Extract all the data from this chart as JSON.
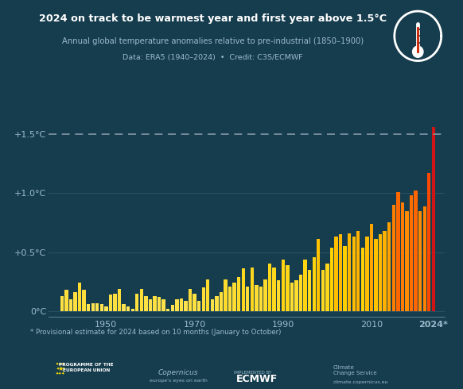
{
  "title": "2024 on track to be warmest year and first year above 1.5°C",
  "subtitle": "Annual global temperature anomalies relative to pre-industrial (1850–1900)",
  "credit": "Data: ERA5 (1940–2024)  •  Credit: C3S/ECMWF",
  "footnote": "* Provisional estimate for 2024 based on 10 months (January to October)",
  "background_color": "#163d4e",
  "dashed_line_y": 1.5,
  "dashed_line_color": "#8899aa",
  "years": [
    1940,
    1941,
    1942,
    1943,
    1944,
    1945,
    1946,
    1947,
    1948,
    1949,
    1950,
    1951,
    1952,
    1953,
    1954,
    1955,
    1956,
    1957,
    1958,
    1959,
    1960,
    1961,
    1962,
    1963,
    1964,
    1965,
    1966,
    1967,
    1968,
    1969,
    1970,
    1971,
    1972,
    1973,
    1974,
    1975,
    1976,
    1977,
    1978,
    1979,
    1980,
    1981,
    1982,
    1983,
    1984,
    1985,
    1986,
    1987,
    1988,
    1989,
    1990,
    1991,
    1992,
    1993,
    1994,
    1995,
    1996,
    1997,
    1998,
    1999,
    2000,
    2001,
    2002,
    2003,
    2004,
    2005,
    2006,
    2007,
    2008,
    2009,
    2010,
    2011,
    2012,
    2013,
    2014,
    2015,
    2016,
    2017,
    2018,
    2019,
    2020,
    2021,
    2022,
    2023,
    2024
  ],
  "values": [
    0.13,
    0.18,
    0.1,
    0.16,
    0.24,
    0.18,
    0.06,
    0.07,
    0.07,
    0.06,
    0.04,
    0.14,
    0.15,
    0.19,
    0.06,
    0.04,
    0.02,
    0.15,
    0.19,
    0.13,
    0.1,
    0.13,
    0.12,
    0.1,
    0.02,
    0.05,
    0.1,
    0.11,
    0.09,
    0.19,
    0.15,
    0.09,
    0.2,
    0.27,
    0.1,
    0.13,
    0.16,
    0.27,
    0.21,
    0.24,
    0.29,
    0.36,
    0.21,
    0.37,
    0.22,
    0.21,
    0.27,
    0.4,
    0.37,
    0.26,
    0.44,
    0.39,
    0.24,
    0.26,
    0.31,
    0.44,
    0.35,
    0.46,
    0.61,
    0.35,
    0.4,
    0.54,
    0.63,
    0.65,
    0.55,
    0.66,
    0.63,
    0.68,
    0.54,
    0.63,
    0.74,
    0.61,
    0.65,
    0.68,
    0.75,
    0.9,
    1.01,
    0.92,
    0.85,
    0.98,
    1.02,
    0.85,
    0.89,
    1.17,
    1.56
  ],
  "yticks": [
    0.0,
    0.5,
    1.0,
    1.5
  ],
  "ylabels": [
    "0°C",
    "+0.5°C",
    "+1.0°C",
    "+1.5°C"
  ],
  "ylim": [
    -0.05,
    1.78
  ],
  "xtick_years": [
    1950,
    1970,
    1990,
    2010
  ],
  "xtick_labels": [
    "1950",
    "1970",
    "1990",
    "2010"
  ],
  "last_label": "2024*",
  "title_color": "#ffffff",
  "subtitle_color": "#9bbccc",
  "credit_color": "#9bbccc",
  "footnote_color": "#9bbccc",
  "axis_color": "#557788",
  "tick_color": "#9bbccc",
  "bar_color_2024": [
    0.82,
    0.08,
    0.08
  ]
}
